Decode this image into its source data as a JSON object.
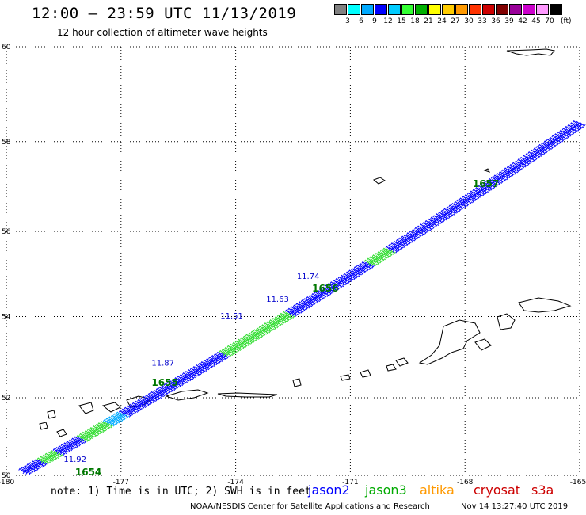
{
  "header": {
    "title": "12:00 – 23:59 UTC 11/13/2019",
    "subtitle": "12 hour collection of altimeter wave heights"
  },
  "legend": {
    "unit": "(ft)",
    "colors": [
      "#808080",
      "#00ffff",
      "#00aaff",
      "#0000ff",
      "#00ccff",
      "#33ff33",
      "#00b000",
      "#ffff00",
      "#ffcc00",
      "#ff9900",
      "#ff3300",
      "#cc0000",
      "#800000",
      "#990099",
      "#cc00cc",
      "#ff99ff",
      "#000000"
    ],
    "labels": [
      "3",
      "6",
      "9",
      "12",
      "15",
      "18",
      "21",
      "24",
      "27",
      "30",
      "33",
      "36",
      "39",
      "42",
      "45",
      "70"
    ]
  },
  "map": {
    "lon_ticks": [
      "-180",
      "-177",
      "-174",
      "-171",
      "-168",
      "-165"
    ],
    "lat_ticks": [
      "60",
      "58",
      "56",
      "54",
      "52",
      "50"
    ]
  },
  "track_labels": [
    {
      "text": "11.92",
      "color": "#0000cc",
      "lon": -178.5,
      "lat": 50.35
    },
    {
      "text": "11.51",
      "color": "#0000cc",
      "lon": -174.4,
      "lat": 53.95
    },
    {
      "text": "11.63",
      "color": "#0000cc",
      "lon": -173.2,
      "lat": 54.35
    },
    {
      "text": "11.74",
      "color": "#0000cc",
      "lon": -172.4,
      "lat": 54.9
    },
    {
      "text": "11.87",
      "color": "#0000cc",
      "lon": -176.2,
      "lat": 52.8
    },
    {
      "text": "1654",
      "color": "#007700",
      "lon": -178.2,
      "lat": 50.0
    },
    {
      "text": "1655",
      "color": "#007700",
      "lon": -176.2,
      "lat": 52.3
    },
    {
      "text": "1656",
      "color": "#007700",
      "lon": -172.0,
      "lat": 54.6
    },
    {
      "text": "1657",
      "color": "#007700",
      "lon": -167.8,
      "lat": 57.0
    }
  ],
  "note": "note: 1) Time is in UTC; 2) SWH is in feet",
  "satellites": [
    {
      "name": "jason2",
      "color": "#0000ff"
    },
    {
      "name": "jason3",
      "color": "#00aa00"
    },
    {
      "name": "altika",
      "color": "#ff9900"
    },
    {
      "name": "cryosat",
      "color": "#cc0000"
    },
    {
      "name": "s3a",
      "color": "#cc0000"
    }
  ],
  "footer": "NOAA/NESDIS Center for Satellite Applications and Research",
  "timestamp": "Nov 14 13:27:40 UTC 2019"
}
